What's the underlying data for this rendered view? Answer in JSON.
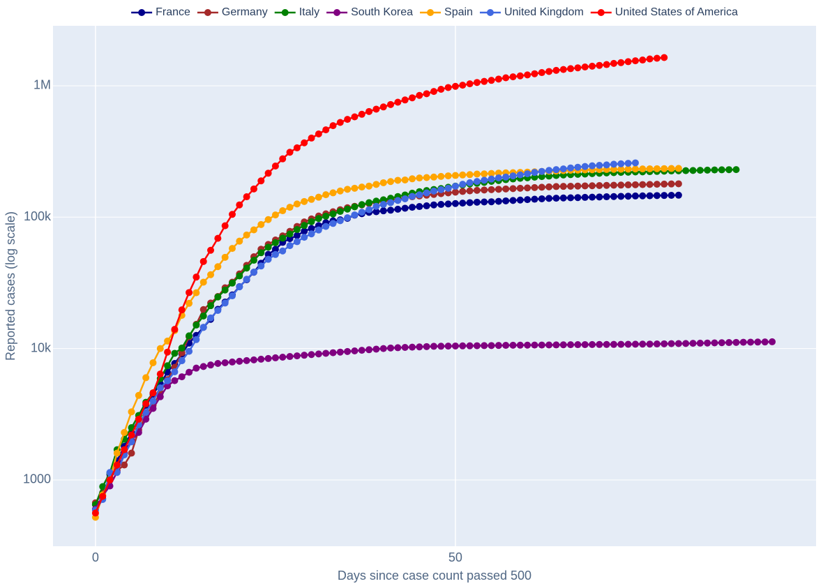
{
  "chart_data": {
    "type": "line",
    "x_label": "Days since case count passed 500",
    "y_label": "Reported cases (log scale)",
    "log_y": true,
    "grid": true,
    "legend": "top",
    "xlim": [
      -5.9,
      100.1
    ],
    "xticks": [
      0,
      50
    ],
    "ylim": [
      313,
      2860000
    ],
    "yticks": [
      1000,
      {
        "value": 10000,
        "label": "10k"
      },
      {
        "value": 100000,
        "label": "100k"
      },
      {
        "value": 1000000,
        "label": "1M"
      }
    ],
    "x": [
      0,
      1,
      2,
      3,
      4,
      5,
      6,
      7,
      8,
      9,
      10,
      11,
      12,
      13,
      14,
      15,
      16,
      17,
      18,
      19,
      20,
      21,
      22,
      23,
      24,
      25,
      26,
      27,
      28,
      29,
      30,
      31,
      32,
      33,
      34,
      35,
      36,
      37,
      38,
      39,
      40,
      41,
      42,
      43,
      44,
      45,
      46,
      47,
      48,
      49,
      50,
      51,
      52,
      53,
      54,
      55,
      56,
      57,
      58,
      59,
      60,
      61,
      62,
      63,
      64,
      65,
      66,
      67,
      68,
      69,
      70,
      71,
      72,
      73,
      74,
      75,
      76,
      77,
      78,
      79,
      80,
      81,
      82,
      83,
      84,
      85,
      86,
      87,
      88,
      89,
      90,
      91,
      92,
      93,
      94
    ],
    "series": [
      {
        "name": "France",
        "color": "#00008b",
        "values": [
          650,
          720,
          1100,
          1400,
          1800,
          2300,
          2900,
          3700,
          4500,
          5400,
          6600,
          7700,
          9100,
          11000,
          12600,
          14500,
          16700,
          19900,
          22600,
          25600,
          29600,
          33400,
          38100,
          44600,
          52100,
          56900,
          64300,
          68600,
          72400,
          78200,
          82000,
          86300,
          90800,
          93800,
          95400,
          98000,
          103600,
          106200,
          108800,
          110000,
          111800,
          113000,
          115000,
          117000,
          119000,
          120500,
          122000,
          124000,
          125000,
          126000,
          127000,
          128000,
          129000,
          130000,
          130500,
          131000,
          132000,
          133000,
          134000,
          135000,
          136000,
          137000,
          138000,
          139000,
          139500,
          140000,
          140500,
          141000,
          141500,
          142000,
          142500,
          143000,
          143500,
          144000,
          144500,
          145000,
          145300,
          145600,
          146000,
          146300,
          146600,
          147000,
          null,
          null,
          null,
          null,
          null,
          null,
          null,
          null,
          null,
          null,
          null,
          null,
          null
        ]
      },
      {
        "name": "Germany",
        "color": "#a52a2a",
        "values": [
          670,
          800,
          1040,
          1180,
          1300,
          1600,
          2400,
          3100,
          3700,
          4600,
          5800,
          7200,
          9300,
          12300,
          15300,
          19800,
          22200,
          24900,
          29000,
          32000,
          37000,
          43000,
          50000,
          57000,
          62000,
          67000,
          72000,
          78000,
          85000,
          92000,
          97000,
          102000,
          106000,
          110000,
          114000,
          118000,
          121000,
          124000,
          127000,
          130000,
          132000,
          135000,
          138000,
          141000,
          143000,
          145000,
          147000,
          149000,
          151000,
          153000,
          155000,
          157000,
          158500,
          160000,
          161000,
          162000,
          163000,
          164000,
          165000,
          166000,
          167000,
          168000,
          169000,
          170000,
          171000,
          171500,
          172000,
          172500,
          173000,
          173500,
          174000,
          174500,
          175000,
          175500,
          176000,
          176500,
          177000,
          177500,
          178000,
          178500,
          179000,
          179500,
          null,
          null,
          null,
          null,
          null,
          null,
          null,
          null,
          null,
          null,
          null,
          null,
          null
        ]
      },
      {
        "name": "Italy",
        "color": "#008000",
        "values": [
          650,
          890,
          1130,
          1700,
          2040,
          2500,
          3100,
          3900,
          4600,
          5900,
          7400,
          9200,
          10100,
          12500,
          15100,
          17700,
          21200,
          24700,
          27900,
          31500,
          35700,
          41000,
          47000,
          53600,
          59100,
          63900,
          69200,
          74400,
          80500,
          86500,
          92500,
          97700,
          101700,
          105800,
          110600,
          115200,
          119800,
          124600,
          128900,
          132500,
          135600,
          139400,
          143600,
          147600,
          152300,
          156400,
          159500,
          162500,
          165200,
          168900,
          172400,
          175900,
          178900,
          181200,
          183900,
          187300,
          189900,
          192900,
          195300,
          197600,
          199400,
          201500,
          203600,
          205400,
          207400,
          209300,
          210700,
          211900,
          213000,
          214500,
          215900,
          217200,
          218300,
          219100,
          219800,
          220800,
          221200,
          222100,
          223100,
          223900,
          224800,
          225400,
          225900,
          226700,
          227400,
          228000,
          228700,
          229300,
          229900,
          230200,
          null,
          null,
          null,
          null,
          null
        ]
      },
      {
        "name": "South Korea",
        "color": "#800080",
        "values": [
          600,
          760,
          900,
          1150,
          1600,
          2000,
          2300,
          2900,
          3500,
          4300,
          5200,
          5700,
          6100,
          6600,
          7100,
          7300,
          7500,
          7700,
          7800,
          7900,
          8000,
          8100,
          8200,
          8300,
          8400,
          8500,
          8600,
          8700,
          8800,
          8900,
          9000,
          9100,
          9200,
          9300,
          9400,
          9500,
          9600,
          9700,
          9800,
          9900,
          10000,
          10100,
          10150,
          10200,
          10250,
          10300,
          10350,
          10400,
          10420,
          10440,
          10460,
          10480,
          10500,
          10510,
          10530,
          10540,
          10560,
          10580,
          10600,
          10610,
          10620,
          10630,
          10640,
          10650,
          10660,
          10680,
          10700,
          10710,
          10720,
          10730,
          10740,
          10750,
          10760,
          10770,
          10780,
          10800,
          10810,
          10820,
          10840,
          10870,
          10900,
          10910,
          10930,
          10960,
          10990,
          11020,
          11050,
          11080,
          11110,
          11140,
          11170,
          11190,
          11210,
          11230,
          11260
        ]
      },
      {
        "name": "Spain",
        "color": "#ffa500",
        "values": [
          520,
          770,
          1000,
          1600,
          2300,
          3300,
          4400,
          6000,
          7800,
          10000,
          11400,
          13700,
          17900,
          22100,
          26600,
          32000,
          36500,
          42000,
          49500,
          57800,
          65700,
          73200,
          80100,
          87900,
          95900,
          104000,
          112000,
          119000,
          126000,
          131600,
          136600,
          141900,
          148200,
          153200,
          158300,
          163000,
          166000,
          169500,
          172500,
          177600,
          182800,
          186600,
          190800,
          192000,
          195900,
          198700,
          200200,
          202000,
          204200,
          206300,
          207600,
          209500,
          210800,
          212900,
          213400,
          215200,
          216600,
          217500,
          218000,
          219300,
          220300,
          221400,
          222800,
          223600,
          224400,
          225900,
          227400,
          228000,
          228700,
          229500,
          230200,
          230700,
          231300,
          231600,
          232000,
          232600,
          233000,
          233400,
          233800,
          234200,
          234600,
          235000,
          null,
          null,
          null,
          null,
          null,
          null,
          null,
          null,
          null,
          null,
          null,
          null,
          null
        ]
      },
      {
        "name": "United Kingdom",
        "color": "#4169e1",
        "values": [
          590,
          710,
          1140,
          1140,
          1550,
          1950,
          2630,
          3270,
          3980,
          5020,
          5680,
          6650,
          8080,
          9530,
          11700,
          14500,
          17100,
          19500,
          22200,
          25200,
          29500,
          33700,
          38200,
          42500,
          47800,
          52000,
          55300,
          60700,
          65100,
          70300,
          74600,
          79900,
          85000,
          89600,
          94000,
          99000,
          104000,
          109000,
          114000,
          121000,
          125000,
          129000,
          134000,
          138000,
          144000,
          148000,
          153000,
          158000,
          162000,
          166000,
          172000,
          178000,
          183000,
          187000,
          191000,
          195000,
          199000,
          202000,
          206000,
          210000,
          214000,
          219000,
          223000,
          227000,
          230000,
          233000,
          237000,
          240000,
          243000,
          246000,
          248000,
          250000,
          253000,
          255000,
          257000,
          259000,
          null,
          null,
          null,
          null,
          null,
          null,
          null,
          null,
          null,
          null,
          null,
          null,
          null,
          null,
          null,
          null,
          null,
          null,
          null
        ]
      },
      {
        "name": "United States of America",
        "color": "#ff0000",
        "values": [
          560,
          750,
          1000,
          1300,
          1700,
          2200,
          2900,
          3800,
          4600,
          6400,
          9400,
          14000,
          19700,
          26700,
          35000,
          46000,
          56000,
          69000,
          86000,
          105000,
          124000,
          143000,
          164000,
          189000,
          216000,
          245000,
          278000,
          312000,
          337000,
          368000,
          400000,
          430000,
          462000,
          497000,
          526000,
          555000,
          580000,
          607000,
          637000,
          664000,
          690000,
          720000,
          750000,
          780000,
          810000,
          845000,
          870000,
          905000,
          940000,
          970000,
          990000,
          1010000,
          1035000,
          1060000,
          1080000,
          1100000,
          1125000,
          1150000,
          1170000,
          1190000,
          1210000,
          1235000,
          1260000,
          1285000,
          1310000,
          1330000,
          1350000,
          1370000,
          1390000,
          1410000,
          1430000,
          1450000,
          1480000,
          1500000,
          1525000,
          1550000,
          1570000,
          1600000,
          1620000,
          1640000,
          null,
          null,
          null,
          null,
          null,
          null,
          null,
          null,
          null,
          null,
          null,
          null,
          null,
          null,
          null
        ]
      }
    ]
  }
}
